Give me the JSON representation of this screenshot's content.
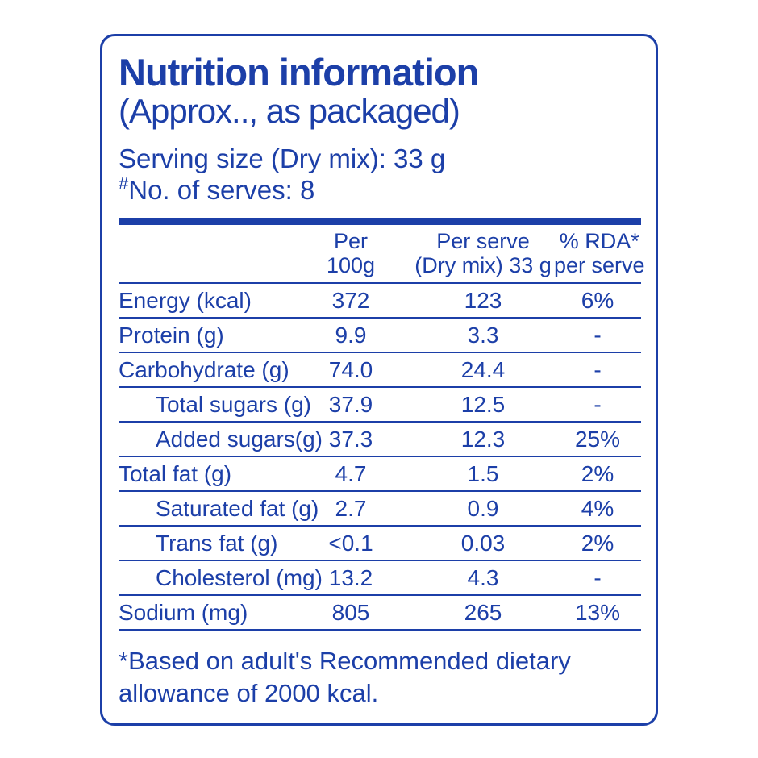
{
  "colors": {
    "blue": "#1c3fa8"
  },
  "header": {
    "title": "Nutrition information",
    "subtitle": "(Approx.., as packaged)",
    "serving_size": "Serving size (Dry mix): 33 g",
    "serves_prefix": "#",
    "serves": "No. of serves: 8"
  },
  "table": {
    "columns": {
      "per100_l1": "Per",
      "per100_l2": "100g",
      "perserve_l1": "Per serve",
      "perserve_l2": "(Dry mix) 33 g",
      "rda_l1": "% RDA*",
      "rda_l2": "per serve"
    },
    "rows": [
      {
        "label": "Energy (kcal)",
        "per100": "372",
        "per_serve": "123",
        "rda": "6%"
      },
      {
        "label": "Protein (g)",
        "per100": "9.9",
        "per_serve": "3.3",
        "rda": "-"
      },
      {
        "label": "Carbohydrate (g)",
        "per100": "74.0",
        "per_serve": "24.4",
        "rda": "-"
      },
      {
        "label": "Total sugars (g)",
        "per100": "37.9",
        "per_serve": "12.5",
        "rda": "-"
      },
      {
        "label": "Added sugars(g)",
        "per100": "37.3",
        "per_serve": "12.3",
        "rda": "25%"
      },
      {
        "label": "Total fat (g)",
        "per100": "4.7",
        "per_serve": "1.5",
        "rda": "2%"
      },
      {
        "label": "Saturated fat (g)",
        "per100": "2.7",
        "per_serve": "0.9",
        "rda": "4%"
      },
      {
        "label": "Trans fat (g)",
        "per100": "<0.1",
        "per_serve": "0.03",
        "rda": "2%"
      },
      {
        "label": "Cholesterol (mg)",
        "per100": "13.2",
        "per_serve": "4.3",
        "rda": "-"
      },
      {
        "label": "Sodium (mg)",
        "per100": "805",
        "per_serve": "265",
        "rda": "13%"
      }
    ]
  },
  "footnote": {
    "line1": "*Based on adult's Recommended dietary",
    "line2": "allowance of 2000 kcal."
  }
}
